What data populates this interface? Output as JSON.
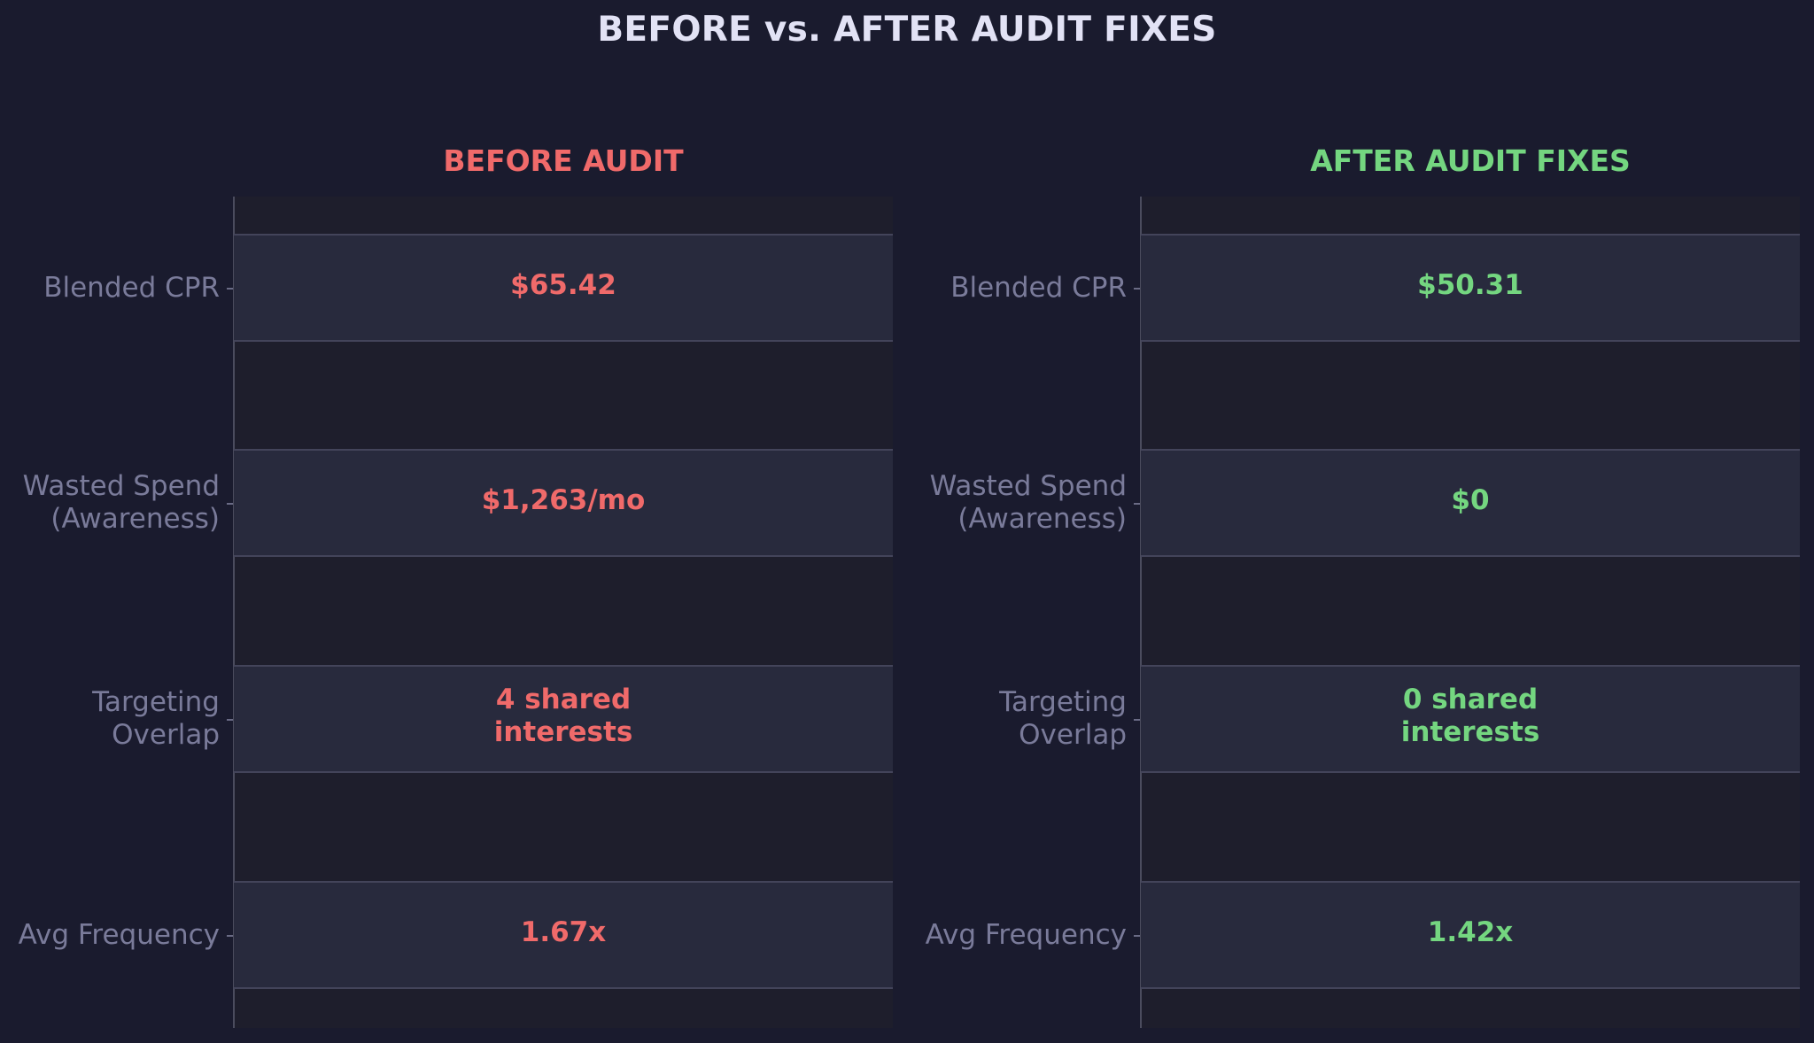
{
  "title": "BEFORE vs. AFTER AUDIT FIXES",
  "colors": {
    "background": "#1a1b2e",
    "before": "#f06a6a",
    "after": "#74d680",
    "label": "#7a7b9a",
    "title": "#e2e2f5"
  },
  "chart_data": {
    "type": "table",
    "title": "BEFORE vs. AFTER AUDIT FIXES",
    "rows": [
      "Blended CPR",
      "Wasted Spend\n(Awareness)",
      "Targeting\nOverlap",
      "Avg Frequency"
    ],
    "panels": [
      {
        "title": "BEFORE AUDIT",
        "color": "#f06a6a",
        "values": [
          "$65.42",
          "$1,263/mo",
          "4 shared\ninterests",
          "1.67x"
        ]
      },
      {
        "title": "AFTER AUDIT FIXES",
        "color": "#74d680",
        "values": [
          "$50.31",
          "$0",
          "0 shared\ninterests",
          "1.42x"
        ]
      }
    ]
  }
}
